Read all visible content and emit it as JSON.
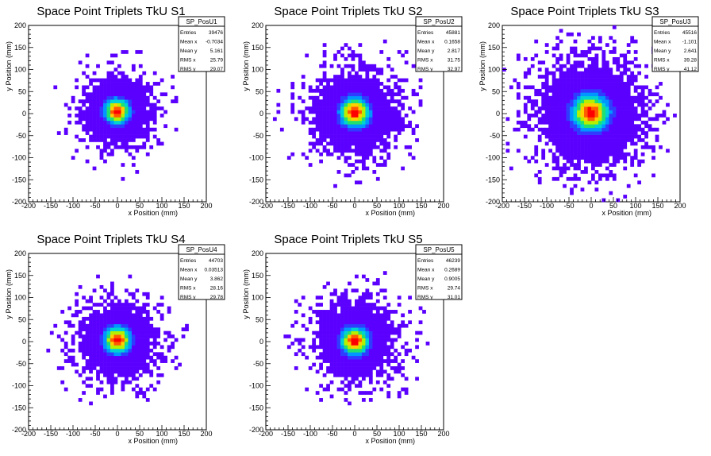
{
  "chart_data": [
    {
      "type": "heatmap",
      "title": "Space Point Triplets TkU S1",
      "xlabel": "x Position (mm)",
      "ylabel": "y Position (mm)",
      "xlim": [
        -200,
        200
      ],
      "ylim": [
        -200,
        200
      ],
      "xticks": [
        "-200",
        "-150",
        "-100",
        "-50",
        "0",
        "50",
        "100",
        "150",
        "200"
      ],
      "yticks": [
        "200",
        "150",
        "100",
        "50",
        "0",
        "-50",
        "-100",
        "-150",
        "-200"
      ],
      "stats": {
        "name": "SP_PosU1",
        "rows": [
          {
            "label": "Entries",
            "value": "39476"
          },
          {
            "label": "Mean x",
            "value": "-0.7034"
          },
          {
            "label": "Mean y",
            "value": "5.161"
          },
          {
            "label": "RMS x",
            "value": "25.79"
          },
          {
            "label": "RMS y",
            "value": "29.07"
          }
        ]
      },
      "distribution": {
        "mean_x": -0.7034,
        "mean_y": 5.161,
        "rms_x": 25.79,
        "rms_y": 29.07
      }
    },
    {
      "type": "heatmap",
      "title": "Space Point Triplets TkU S2",
      "xlabel": "x Position (mm)",
      "ylabel": "y Position (mm)",
      "xlim": [
        -200,
        200
      ],
      "ylim": [
        -200,
        200
      ],
      "xticks": [
        "-200",
        "-150",
        "-100",
        "-50",
        "0",
        "50",
        "100",
        "150",
        "200"
      ],
      "yticks": [
        "200",
        "150",
        "100",
        "50",
        "0",
        "-50",
        "-100",
        "-150",
        "-200"
      ],
      "stats": {
        "name": "SP_PosU2",
        "rows": [
          {
            "label": "Entries",
            "value": "45881"
          },
          {
            "label": "Mean x",
            "value": "0.1658"
          },
          {
            "label": "Mean y",
            "value": "2.817"
          },
          {
            "label": "RMS x",
            "value": "31.75"
          },
          {
            "label": "RMS y",
            "value": "32.97"
          }
        ]
      },
      "distribution": {
        "mean_x": 0.1658,
        "mean_y": 2.817,
        "rms_x": 31.75,
        "rms_y": 32.97
      }
    },
    {
      "type": "heatmap",
      "title": "Space Point Triplets TkU S3",
      "xlabel": "x Position (mm)",
      "ylabel": "y Position (mm)",
      "xlim": [
        -200,
        200
      ],
      "ylim": [
        -200,
        200
      ],
      "xticks": [
        "-200",
        "-150",
        "-100",
        "-50",
        "0",
        "50",
        "100",
        "150",
        "200"
      ],
      "yticks": [
        "200",
        "150",
        "100",
        "50",
        "0",
        "-50",
        "-100",
        "-150",
        "-200"
      ],
      "stats": {
        "name": "SP_PosU3",
        "rows": [
          {
            "label": "Entries",
            "value": "45516"
          },
          {
            "label": "Mean x",
            "value": "-1.101"
          },
          {
            "label": "Mean y",
            "value": "2.641"
          },
          {
            "label": "RMS x",
            "value": "39.28"
          },
          {
            "label": "RMS y",
            "value": "41.12"
          }
        ]
      },
      "distribution": {
        "mean_x": -1.101,
        "mean_y": 2.641,
        "rms_x": 39.28,
        "rms_y": 41.12
      }
    },
    {
      "type": "heatmap",
      "title": "Space Point Triplets TkU S4",
      "xlabel": "x Position (mm)",
      "ylabel": "y Position (mm)",
      "xlim": [
        -200,
        200
      ],
      "ylim": [
        -200,
        200
      ],
      "xticks": [
        "-200",
        "-150",
        "-100",
        "-50",
        "0",
        "50",
        "100",
        "150",
        "200"
      ],
      "yticks": [
        "200",
        "150",
        "100",
        "50",
        "0",
        "-50",
        "-100",
        "-150",
        "-200"
      ],
      "stats": {
        "name": "SP_PosU4",
        "rows": [
          {
            "label": "Entries",
            "value": "44703"
          },
          {
            "label": "Mean x",
            "value": "0.03513"
          },
          {
            "label": "Mean y",
            "value": "3.862"
          },
          {
            "label": "RMS x",
            "value": "28.16"
          },
          {
            "label": "RMS y",
            "value": "29.78"
          }
        ]
      },
      "distribution": {
        "mean_x": 0.03513,
        "mean_y": 3.862,
        "rms_x": 28.16,
        "rms_y": 29.78
      }
    },
    {
      "type": "heatmap",
      "title": "Space Point Triplets TkU S5",
      "xlabel": "x Position (mm)",
      "ylabel": "y Position (mm)",
      "xlim": [
        -200,
        200
      ],
      "ylim": [
        -200,
        200
      ],
      "xticks": [
        "-200",
        "-150",
        "-100",
        "-50",
        "0",
        "50",
        "100",
        "150",
        "200"
      ],
      "yticks": [
        "200",
        "150",
        "100",
        "50",
        "0",
        "-50",
        "-100",
        "-150",
        "-200"
      ],
      "stats": {
        "name": "SP_PosU5",
        "rows": [
          {
            "label": "Entries",
            "value": "46239"
          },
          {
            "label": "Mean x",
            "value": "0.2689"
          },
          {
            "label": "Mean y",
            "value": "0.9005"
          },
          {
            "label": "RMS x",
            "value": "29.74"
          },
          {
            "label": "RMS y",
            "value": "31.01"
          }
        ]
      },
      "distribution": {
        "mean_x": 0.2689,
        "mean_y": 0.9005,
        "rms_x": 29.74,
        "rms_y": 31.01
      }
    }
  ],
  "palette": [
    "#5b00ff",
    "#2f3cff",
    "#0096ff",
    "#00d2d2",
    "#20e070",
    "#b4f000",
    "#ffcf00",
    "#ff5a00",
    "#ff0000"
  ]
}
